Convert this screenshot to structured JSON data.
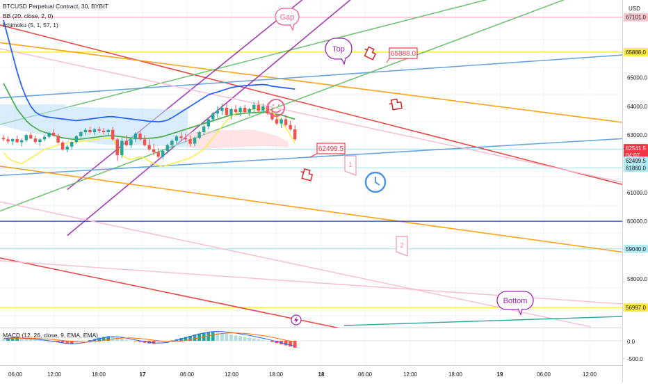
{
  "header": {
    "symbol_line": "BTCUSD Perpetual Contract, 30, BYBIT",
    "bb_line": "BB (20, close, 2, 0)",
    "ichimoku_line": "Ichimoku (5, 1, 57, 1)",
    "currency": "USD"
  },
  "macd": {
    "label": "MACD (12, 26, close, 9, EMA, EMA)",
    "ticks": [
      "0.0",
      "-500.0"
    ]
  },
  "chart_data": {
    "type": "candlestick",
    "title": "BTCUSD Perpetual Contract, 30, BYBIT",
    "timeframe": "30",
    "exchange": "BYBIT",
    "ylim": [
      56300,
      67700
    ],
    "price_ticks": [
      "65000.0",
      "64000.0",
      "63000.0",
      "62000.0",
      "61000.0",
      "60000.0",
      "59000.0",
      "58000.0"
    ],
    "time_ticks": [
      "06:00",
      "12:00",
      "18:00",
      "17",
      "06:00",
      "12:00",
      "18:00",
      "18",
      "06:00",
      "12:00",
      "18:00",
      "19",
      "06:00",
      "12:00"
    ],
    "price_tags": [
      {
        "label": "67101.0",
        "value": 67101,
        "color": "#f7c6cf",
        "text_color": "#131722"
      },
      {
        "label": "65888.0",
        "value": 65888,
        "color": "#ffeb3b",
        "text_color": "#131722"
      },
      {
        "label": "62541.5",
        "value": 62541.5,
        "color": "#f23645",
        "text_color": "#ffffff"
      },
      {
        "label": "04:07",
        "value": 62300,
        "color": "#f23645",
        "text_color": "#ffffff"
      },
      {
        "label": "62499.5",
        "value": 62110,
        "color": "#b2ebf2",
        "text_color": "#131722"
      },
      {
        "label": "61860.0",
        "value": 61860,
        "color": "#b2ebf2",
        "text_color": "#131722"
      },
      {
        "label": "59040.0",
        "value": 59040,
        "color": "#b2ebf2",
        "text_color": "#131722"
      },
      {
        "label": "56997.0",
        "value": 56997,
        "color": "#ffeb3b",
        "text_color": "#131722"
      }
    ],
    "annotations": [
      {
        "text": "Gap",
        "kind": "bubble",
        "color": "#f06292"
      },
      {
        "text": "Top",
        "kind": "bubble",
        "color": "#9c27b0"
      },
      {
        "text": "Bottom",
        "kind": "bubble",
        "color": "#9c27b0"
      },
      {
        "text": "65888.0",
        "kind": "price-label",
        "color": "#f23645"
      },
      {
        "text": "62499.5",
        "kind": "price-label",
        "color": "#f23645"
      },
      {
        "text": "1",
        "kind": "flag",
        "color": "#f48fb1"
      },
      {
        "text": "2",
        "kind": "flag",
        "color": "#f48fb1"
      }
    ],
    "candles_ohlc": [
      [
        62900,
        63000,
        62780,
        62850
      ],
      [
        62850,
        62950,
        62700,
        62780
      ],
      [
        62780,
        62900,
        62650,
        62860
      ],
      [
        62860,
        62980,
        62720,
        62750
      ],
      [
        62750,
        62880,
        62600,
        62820
      ],
      [
        62820,
        63050,
        62760,
        63000
      ],
      [
        63000,
        63100,
        62850,
        62880
      ],
      [
        62880,
        62980,
        62700,
        62760
      ],
      [
        62760,
        62900,
        62620,
        62850
      ],
      [
        62850,
        63000,
        62780,
        62940
      ],
      [
        62940,
        63120,
        62880,
        63080
      ],
      [
        63080,
        63200,
        62950,
        62980
      ],
      [
        62980,
        63050,
        62700,
        62740
      ],
      [
        62740,
        62800,
        62450,
        62500
      ],
      [
        62500,
        62650,
        62400,
        62600
      ],
      [
        62600,
        62800,
        62500,
        62760
      ],
      [
        62760,
        63000,
        62700,
        62960
      ],
      [
        62960,
        63150,
        62900,
        63100
      ],
      [
        63100,
        63250,
        63000,
        63180
      ],
      [
        63180,
        63300,
        63050,
        63100
      ],
      [
        63100,
        63250,
        63000,
        63200
      ],
      [
        63200,
        63300,
        63080,
        63150
      ],
      [
        63150,
        63250,
        63020,
        63100
      ],
      [
        63100,
        63200,
        62950,
        63180
      ],
      [
        63180,
        63280,
        62800,
        62850
      ],
      [
        62850,
        62900,
        62100,
        62300
      ],
      [
        62300,
        62900,
        62200,
        62800
      ],
      [
        62800,
        63000,
        62600,
        62650
      ],
      [
        62650,
        62900,
        62550,
        62850
      ],
      [
        62850,
        63100,
        62750,
        63050
      ],
      [
        63050,
        63150,
        62800,
        62850
      ],
      [
        62850,
        63000,
        62600,
        62650
      ],
      [
        62650,
        62850,
        62450,
        62500
      ],
      [
        62500,
        62700,
        62300,
        62400
      ],
      [
        62400,
        62550,
        62200,
        62250
      ],
      [
        62250,
        62500,
        62150,
        62450
      ],
      [
        62450,
        62700,
        62350,
        62650
      ],
      [
        62650,
        62850,
        62500,
        62800
      ],
      [
        62800,
        63000,
        62700,
        62950
      ],
      [
        62950,
        63100,
        62800,
        62900
      ],
      [
        62900,
        63050,
        62750,
        62850
      ],
      [
        62850,
        63000,
        62600,
        62700
      ],
      [
        62700,
        62950,
        62600,
        62900
      ],
      [
        62900,
        63150,
        62850,
        63100
      ],
      [
        63100,
        63350,
        63000,
        63300
      ],
      [
        63300,
        63600,
        63200,
        63550
      ],
      [
        63550,
        63800,
        63450,
        63750
      ],
      [
        63750,
        64000,
        63600,
        63850
      ],
      [
        63850,
        64100,
        63700,
        63950
      ],
      [
        63950,
        64100,
        63650,
        63700
      ],
      [
        63700,
        63950,
        63550,
        63900
      ],
      [
        63900,
        64050,
        63750,
        63800
      ],
      [
        63800,
        64000,
        63650,
        63950
      ],
      [
        63950,
        64050,
        63750,
        63800
      ],
      [
        63800,
        63950,
        63650,
        63900
      ],
      [
        63900,
        64150,
        63800,
        64050
      ],
      [
        64050,
        64200,
        63800,
        63850
      ],
      [
        63850,
        64100,
        63750,
        64000
      ],
      [
        64000,
        64100,
        63700,
        63750
      ],
      [
        63750,
        63950,
        63500,
        63550
      ],
      [
        63550,
        63750,
        63350,
        63400
      ],
      [
        63400,
        63600,
        63250,
        63550
      ],
      [
        63550,
        63700,
        63300,
        63350
      ],
      [
        63350,
        63500,
        63150,
        63200
      ],
      [
        63200,
        63350,
        62800,
        62850
      ]
    ],
    "series": [
      {
        "name": "BB (20, close, 2, 0)",
        "color": "#4caf50",
        "values": [
          64800,
          64500,
          64200,
          63900,
          63700,
          63500,
          63350,
          63250,
          63150,
          63100,
          63050,
          63000,
          62950,
          62900,
          62880,
          62860,
          62850,
          62860,
          62880,
          62900,
          62920,
          62940,
          62960,
          62980,
          62980,
          62960,
          62940,
          62920,
          62900,
          62890,
          62880,
          62880,
          62890,
          62900,
          62920,
          62950,
          63000,
          63050,
          63100,
          63150,
          63200,
          63250,
          63300,
          63350,
          63400,
          63450,
          63500,
          63550,
          63600,
          63650,
          63700,
          63720,
          63740,
          63760,
          63770,
          63780,
          63790,
          63800,
          63780,
          63750,
          63720,
          63700,
          63650,
          63600,
          63550
        ]
      },
      {
        "name": "BB (20, close, 2, 0)",
        "color": "#2962ff",
        "values": [
          67000,
          66400,
          65800,
          65200,
          64700,
          64300,
          64000,
          63800,
          63700,
          63650,
          63620,
          63600,
          63580,
          63560,
          63540,
          63520,
          63500,
          63520,
          63540,
          63560,
          63580,
          63600,
          63620,
          63640,
          63640,
          63620,
          63600,
          63580,
          63560,
          63540,
          63520,
          63500,
          63480,
          63470,
          63460,
          63480,
          63520,
          63600,
          63700,
          63800,
          63900,
          64000,
          64100,
          64200,
          64300,
          64400,
          64450,
          64500,
          64550,
          64600,
          64650,
          64680,
          64700,
          64720,
          64730,
          64740,
          64750,
          64760,
          64740,
          64700,
          64680,
          64660,
          64640,
          64620,
          64600
        ]
      },
      {
        "name": "Ichimoku (5, 1, 57, 1)",
        "color": "#ffeb3b",
        "values": [
          62400,
          62200,
          62100,
          62050,
          62000,
          62100,
          62200,
          62300,
          62400,
          62500,
          62550,
          62600,
          62650,
          62700,
          62720,
          62740,
          62760,
          62780,
          62800,
          62820,
          62840,
          62860,
          62880,
          62900,
          62880,
          62600,
          62300,
          62200,
          62150,
          62200,
          62250,
          62200,
          62100,
          62000,
          61950,
          61900,
          61950,
          62000,
          62050,
          62100,
          62150,
          62200,
          62300,
          62400,
          62500,
          62700,
          62900,
          63100,
          63300,
          63500,
          63650,
          63750,
          63820,
          63850,
          63880,
          63900,
          63920,
          63940,
          63900,
          63800,
          63650,
          63450,
          63250,
          63000,
          62700
        ]
      }
    ],
    "trendlines": [
      {
        "name": "red-top",
        "color": "#e53935",
        "from": [
          0,
          66800
        ],
        "to": [
          64,
          64200
        ]
      },
      {
        "name": "orange-upper",
        "color": "#ff9800",
        "from": [
          0,
          66200
        ],
        "to": [
          64,
          64900
        ]
      },
      {
        "name": "green-channel-top",
        "color": "#66bb6a",
        "from": [
          0,
          63400
        ],
        "to": [
          64,
          66000
        ]
      },
      {
        "name": "blue-mid",
        "color": "#5b9bd5",
        "from": [
          0,
          64300
        ],
        "to": [
          64,
          65000
        ]
      },
      {
        "name": "purple-channel-top",
        "color": "#9c27b0",
        "from": [
          14,
          61100
        ],
        "to": [
          64,
          67500
        ]
      },
      {
        "name": "purple-channel-bottom",
        "color": "#9c27b0",
        "from": [
          14,
          59500
        ],
        "to": [
          64,
          66100
        ]
      },
      {
        "name": "green-channel-bottom",
        "color": "#66bb6a",
        "from": [
          0,
          60400
        ],
        "to": [
          64,
          64200
        ]
      },
      {
        "name": "blue-support",
        "color": "#5b9bd5",
        "from": [
          0,
          61600
        ],
        "to": [
          64,
          62200
        ]
      },
      {
        "name": "orange-lower",
        "color": "#ff9800",
        "from": [
          0,
          61900
        ],
        "to": [
          64,
          60500
        ]
      },
      {
        "name": "navy-horizontal",
        "color": "#3949ab",
        "from": [
          0,
          60000
        ],
        "to": [
          64,
          60000
        ]
      },
      {
        "name": "red-lower",
        "color": "#e53935",
        "from": [
          0,
          58700
        ],
        "to": [
          64,
          56600
        ]
      }
    ],
    "horizontal_levels": [
      {
        "value": 67101,
        "color": "#f8bbd0"
      },
      {
        "value": 65888,
        "color": "#ffeb3b"
      },
      {
        "value": 62499.5,
        "color": "#b2ebf2"
      },
      {
        "value": 61860,
        "color": "#b2ebf2"
      },
      {
        "value": 59040,
        "color": "#b2ebf2"
      },
      {
        "value": 56997,
        "color": "#ffeb3b"
      }
    ],
    "macd_hist": [
      40,
      60,
      80,
      90,
      70,
      50,
      40,
      30,
      20,
      10,
      -5,
      -20,
      -40,
      -60,
      -80,
      -90,
      -70,
      -40,
      -10,
      20,
      50,
      80,
      100,
      120,
      110,
      90,
      60,
      30,
      10,
      -10,
      -30,
      -50,
      -70,
      -80,
      -70,
      -50,
      -20,
      10,
      40,
      70,
      100,
      130,
      160,
      190,
      210,
      220,
      230,
      220,
      200,
      180,
      160,
      140,
      120,
      100,
      80,
      60,
      40,
      20,
      0,
      -30,
      -60,
      -90,
      -120,
      -150,
      -180
    ],
    "macd_line": [
      60,
      70,
      80,
      80,
      70,
      60,
      50,
      40,
      30,
      15,
      0,
      -15,
      -35,
      -55,
      -70,
      -80,
      -75,
      -60,
      -40,
      -10,
      20,
      50,
      80,
      100,
      110,
      105,
      90,
      70,
      45,
      20,
      0,
      -20,
      -40,
      -55,
      -60,
      -55,
      -40,
      -15,
      15,
      45,
      80,
      115,
      150,
      180,
      205,
      225,
      240,
      245,
      240,
      230,
      215,
      200,
      180,
      160,
      140,
      115,
      90,
      65,
      40,
      10,
      -20,
      -50,
      -80,
      -110,
      -140
    ],
    "macd_signal": [
      50,
      55,
      60,
      65,
      68,
      68,
      66,
      62,
      56,
      50,
      42,
      32,
      20,
      8,
      -5,
      -18,
      -28,
      -34,
      -36,
      -32,
      -22,
      -8,
      10,
      30,
      48,
      62,
      72,
      76,
      74,
      68,
      58,
      45,
      30,
      15,
      2,
      -10,
      -18,
      -20,
      -15,
      -5,
      10,
      30,
      55,
      80,
      105,
      130,
      155,
      175,
      190,
      200,
      205,
      205,
      200,
      192,
      182,
      168,
      152,
      135,
      115,
      92,
      68,
      42,
      15,
      -12,
      -40
    ]
  }
}
